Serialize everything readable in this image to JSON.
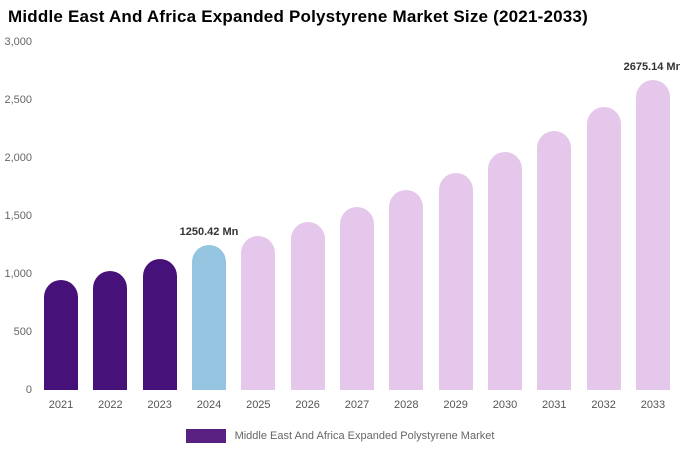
{
  "title": "Middle East And Africa Expanded Polystyrene Market Size (2021-2033)",
  "legend": {
    "label": "Middle East And Africa Expanded Polystyrene Market",
    "swatch_color": "#5B2182"
  },
  "colors": {
    "historical": "#47117A",
    "current": "#94C4E0",
    "forecast": "#E4C7EA"
  },
  "chart_data": {
    "type": "bar",
    "title": "Middle East And Africa Expanded Polystyrene Market Size (2021-2033)",
    "categories": [
      "2021",
      "2022",
      "2023",
      "2024",
      "2025",
      "2026",
      "2027",
      "2028",
      "2029",
      "2030",
      "2031",
      "2032",
      "2033"
    ],
    "values": [
      950,
      1030,
      1130,
      1250.42,
      1330,
      1450,
      1580,
      1720,
      1870,
      2050,
      2230,
      2440,
      2675.14
    ],
    "bar_roles": [
      "historical",
      "historical",
      "historical",
      "current",
      "forecast",
      "forecast",
      "forecast",
      "forecast",
      "forecast",
      "forecast",
      "forecast",
      "forecast",
      "forecast"
    ],
    "value_labels": {
      "2024": "1250.42 Mn",
      "2033": "2675.14 Mn"
    },
    "xlabel": "",
    "ylabel": "",
    "ylim": [
      0,
      3000
    ],
    "yticks": [
      {
        "label": "0",
        "value": 0
      },
      {
        "label": "500",
        "value": 500
      },
      {
        "label": "1,000",
        "value": 1000
      },
      {
        "label": "1,500",
        "value": 1500
      },
      {
        "label": "2,000",
        "value": 2000
      },
      {
        "label": "2,500",
        "value": 2500
      },
      {
        "label": "3,000",
        "value": 3000
      }
    ],
    "grid": false,
    "legend_position": "bottom",
    "legend_entries": [
      "Middle East And Africa Expanded Polystyrene Market"
    ]
  }
}
